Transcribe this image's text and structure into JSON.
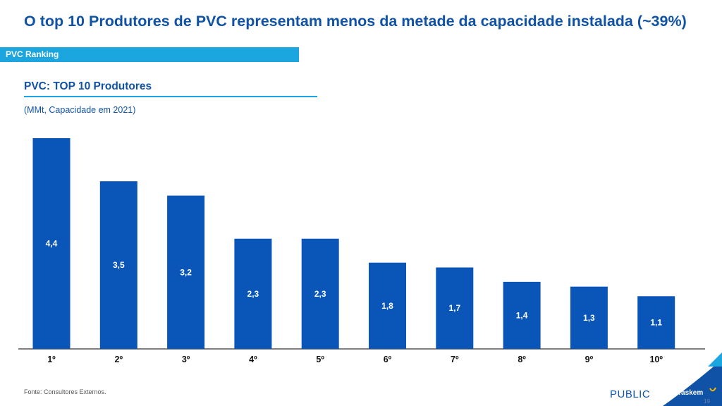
{
  "header": {
    "title": "O top 10 Produtores de PVC representam menos da metade da capacidade instalada (~39%)",
    "section_label": "PVC Ranking"
  },
  "chart_data": {
    "type": "bar",
    "title": "PVC: TOP 10 Produtores",
    "subtitle": "(MMt, Capacidade em 2021)",
    "categories": [
      "1º",
      "2º",
      "3º",
      "4º",
      "5º",
      "6º",
      "7º",
      "8º",
      "9º",
      "10º"
    ],
    "values": [
      4.4,
      3.5,
      3.2,
      2.3,
      2.3,
      1.8,
      1.7,
      1.4,
      1.3,
      1.1
    ],
    "value_labels": [
      "4,4",
      "3,5",
      "3,2",
      "2,3",
      "2,3",
      "1,8",
      "1,7",
      "1,4",
      "1,3",
      "1,1"
    ],
    "ylim": [
      0,
      4.4
    ],
    "grid": false,
    "bar_color": "#0A55B8",
    "label_color": "#ffffff"
  },
  "footer": {
    "source": "Fonte: Consultores Externos.",
    "classification": "PUBLIC",
    "brand": "Braskem",
    "page_number": "19"
  },
  "colors": {
    "title": "#1053A6",
    "accent": "#1CA6DF",
    "axis": "#333333"
  }
}
